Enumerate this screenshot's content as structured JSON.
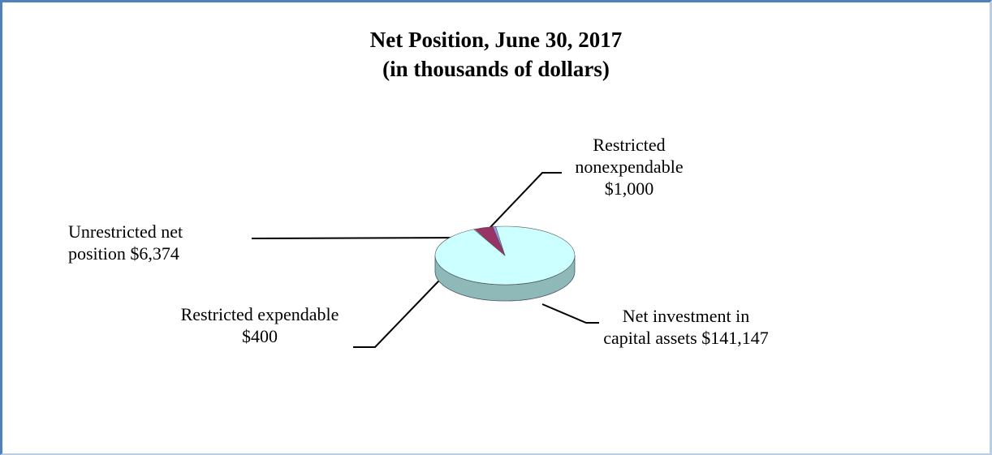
{
  "chart_data": {
    "type": "pie",
    "title": "Net Position, June 30, 2017",
    "subtitle": "(in thousands of dollars)",
    "categories": [
      "Restricted nonexpendable",
      "Net investment in capital assets",
      "Restricted expendable",
      "Unrestricted net position"
    ],
    "values": [
      1000,
      141147,
      400,
      6374
    ],
    "value_labels": [
      "$1,000",
      "$141,147",
      "$400",
      "$6,374"
    ],
    "colors": [
      "#9999ff",
      "#ccffff",
      "#ffffcc",
      "#993366"
    ]
  }
}
